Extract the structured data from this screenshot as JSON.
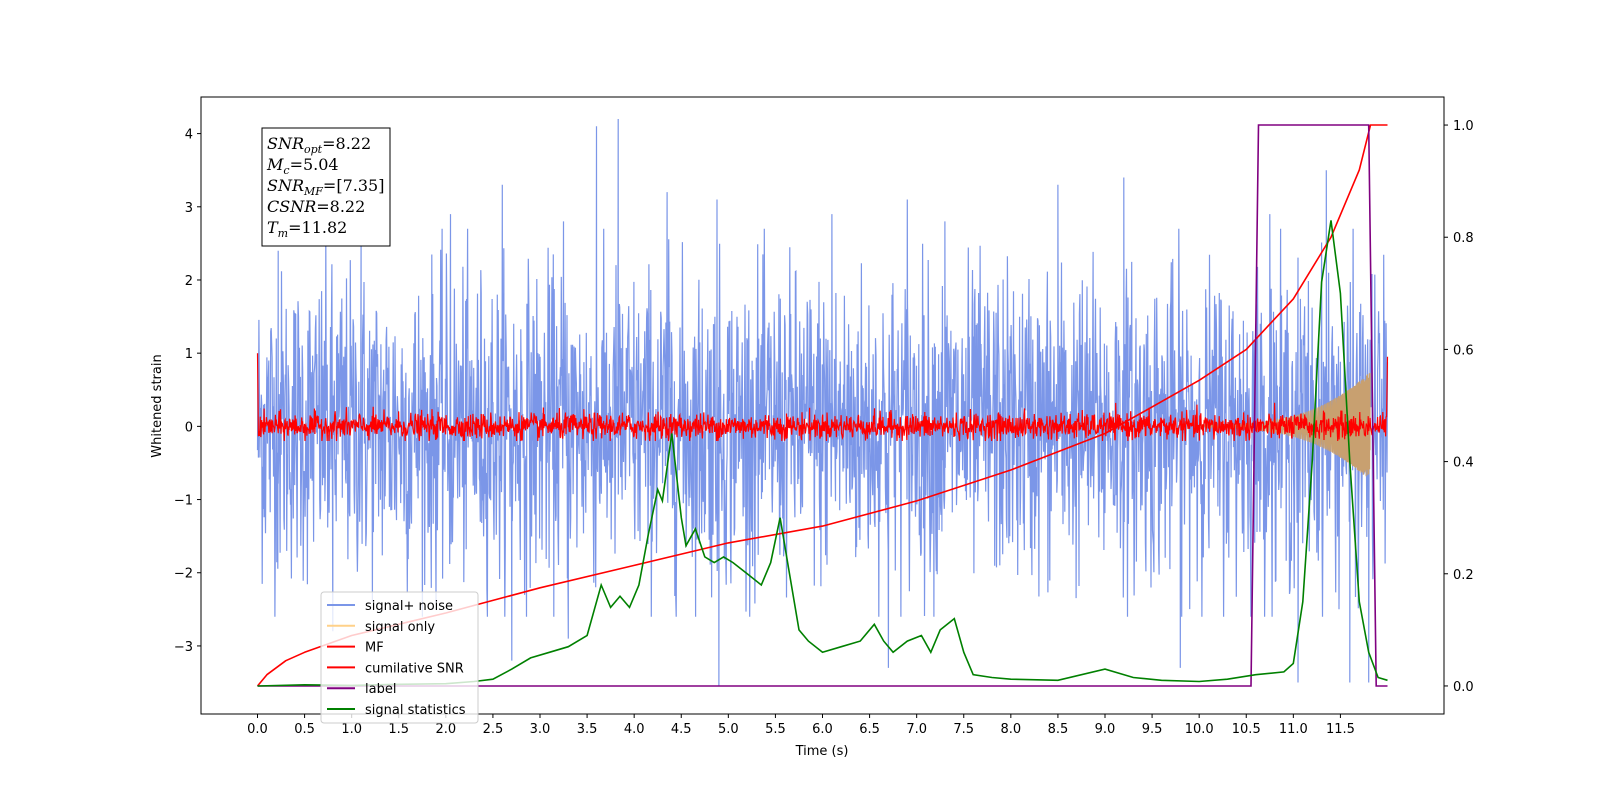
{
  "chart_data": {
    "type": "line",
    "xlabel": "Time (s)",
    "ylabel": "Whitened strain",
    "xlim": [
      -0.6,
      12.6
    ],
    "ylim_left": [
      -3.93,
      4.5
    ],
    "ylim_right": [
      -0.05,
      1.05
    ],
    "x_ticks": [
      "0.0",
      "0.5",
      "1.0",
      "1.5",
      "2.0",
      "2.5",
      "3.0",
      "3.5",
      "4.0",
      "4.5",
      "5.0",
      "5.5",
      "6.0",
      "6.5",
      "7.0",
      "7.5",
      "8.0",
      "8.5",
      "9.0",
      "9.5",
      "10.0",
      "10.5",
      "11.0",
      "11.5"
    ],
    "y_ticks_left": [
      "4",
      "3",
      "2",
      "1",
      "0",
      "−1",
      "−2",
      "−3"
    ],
    "y_ticks_right": [
      "1.0",
      "0.8",
      "0.6",
      "0.4",
      "0.2",
      "0.0"
    ],
    "annotation": [
      {
        "base": "SNR",
        "sub": "opt",
        "value": "=8.22"
      },
      {
        "base": "M",
        "sub": "c",
        "value": "=5.04"
      },
      {
        "base": "SNR",
        "sub": "MF",
        "value": "=[7.35]"
      },
      {
        "base": "CSNR",
        "sub": "",
        "value": "=8.22"
      },
      {
        "base": "T",
        "sub": "m",
        "value": "=11.82"
      }
    ],
    "legend": {
      "placement": "lower-left",
      "entries": [
        {
          "label": "signal+ noise",
          "color": "#7b96e8"
        },
        {
          "label": "signal only",
          "color": "#ffd189"
        },
        {
          "label": "MF",
          "color": "#ff0000"
        },
        {
          "label": "cumilative SNR",
          "color": "#ff0000"
        },
        {
          "label": "label",
          "color": "#800080"
        },
        {
          "label": "signal statistics",
          "color": "#008000"
        }
      ]
    },
    "series": [
      {
        "name": "signal+ noise",
        "axis": "left",
        "color": "#7b96e8",
        "x_range": [
          0.0,
          12.0
        ],
        "envelope": {
          "typical_abs": 1.9,
          "peak_max": 4.2,
          "peak_min": -3.55
        },
        "spikes": [
          [
            0.22,
            2.4
          ],
          [
            1.1,
            2.6
          ],
          [
            2.05,
            2.9
          ],
          [
            2.6,
            3.3
          ],
          [
            3.25,
            2.8
          ],
          [
            3.6,
            4.1
          ],
          [
            3.83,
            4.2
          ],
          [
            3.3,
            -2.9
          ],
          [
            4.35,
            3.2
          ],
          [
            4.9,
            -3.55
          ],
          [
            4.88,
            3.1
          ],
          [
            6.1,
            2.9
          ],
          [
            6.7,
            -3.3
          ],
          [
            6.9,
            3.1
          ],
          [
            7.3,
            2.8
          ],
          [
            8.5,
            3.3
          ],
          [
            9.2,
            3.4
          ],
          [
            9.8,
            -3.3
          ],
          [
            10.75,
            2.9
          ],
          [
            11.05,
            -3.5
          ],
          [
            11.35,
            3.5
          ],
          [
            11.6,
            -3.5
          ],
          [
            11.8,
            -3.5
          ],
          [
            0.8,
            -2.8
          ],
          [
            2.7,
            -3.2
          ]
        ]
      },
      {
        "name": "signal only",
        "axis": "left",
        "color": "#ffd189",
        "chirp": {
          "t_merge": 11.82,
          "amp_start": 0.02,
          "amp_end": 0.75
        }
      },
      {
        "name": "MF",
        "axis": "left",
        "color": "#ff0000",
        "x_range": [
          0.0,
          12.0
        ],
        "envelope": {
          "typical_abs": 0.22,
          "start_value": 1.0,
          "end_value": 0.95
        }
      },
      {
        "name": "cumilative SNR",
        "axis": "right",
        "color": "#ff0000",
        "x": [
          0.0,
          0.1,
          0.3,
          0.5,
          1.0,
          2.0,
          3.0,
          4.0,
          5.0,
          6.0,
          7.0,
          8.0,
          9.0,
          10.0,
          10.5,
          11.0,
          11.4,
          11.7,
          11.82,
          12.0
        ],
        "y": [
          0.0,
          0.02,
          0.045,
          0.06,
          0.09,
          0.13,
          0.175,
          0.215,
          0.255,
          0.285,
          0.33,
          0.385,
          0.45,
          0.545,
          0.6,
          0.69,
          0.8,
          0.92,
          1.0,
          1.0
        ]
      },
      {
        "name": "label",
        "axis": "right",
        "color": "#800080",
        "x": [
          0.0,
          10.55,
          10.63,
          11.8,
          11.88,
          12.0
        ],
        "y": [
          0.0,
          0.0,
          1.0,
          1.0,
          0.0,
          0.0
        ]
      },
      {
        "name": "signal statistics",
        "axis": "right",
        "color": "#008000",
        "x": [
          0.0,
          0.5,
          1.0,
          1.5,
          2.0,
          2.3,
          2.5,
          2.7,
          2.9,
          3.1,
          3.3,
          3.5,
          3.65,
          3.75,
          3.85,
          3.95,
          4.05,
          4.15,
          4.25,
          4.3,
          4.4,
          4.5,
          4.55,
          4.65,
          4.75,
          4.85,
          4.95,
          5.05,
          5.2,
          5.35,
          5.45,
          5.55,
          5.65,
          5.75,
          5.85,
          6.0,
          6.2,
          6.4,
          6.55,
          6.65,
          6.75,
          6.9,
          7.05,
          7.15,
          7.25,
          7.4,
          7.5,
          7.6,
          7.8,
          8.0,
          8.5,
          9.0,
          9.3,
          9.6,
          10.0,
          10.3,
          10.6,
          10.9,
          11.0,
          11.1,
          11.2,
          11.3,
          11.4,
          11.5,
          11.6,
          11.7,
          11.8,
          11.9,
          12.0
        ],
        "y": [
          0.0,
          0.002,
          0.001,
          0.003,
          0.004,
          0.008,
          0.012,
          0.03,
          0.05,
          0.06,
          0.07,
          0.09,
          0.18,
          0.14,
          0.16,
          0.14,
          0.18,
          0.27,
          0.35,
          0.33,
          0.45,
          0.3,
          0.25,
          0.28,
          0.23,
          0.22,
          0.23,
          0.22,
          0.2,
          0.18,
          0.22,
          0.3,
          0.2,
          0.1,
          0.08,
          0.06,
          0.07,
          0.08,
          0.11,
          0.08,
          0.06,
          0.08,
          0.09,
          0.06,
          0.1,
          0.12,
          0.06,
          0.02,
          0.015,
          0.012,
          0.01,
          0.03,
          0.015,
          0.01,
          0.008,
          0.012,
          0.02,
          0.025,
          0.04,
          0.15,
          0.4,
          0.72,
          0.83,
          0.7,
          0.4,
          0.15,
          0.06,
          0.015,
          0.01
        ]
      }
    ]
  }
}
